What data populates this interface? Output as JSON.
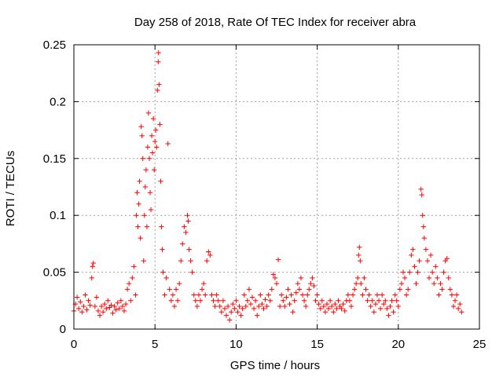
{
  "chart_data": {
    "type": "scatter",
    "title": "Day 258 of 2018, Rate Of TEC Index for receiver abra",
    "xlabel": "GPS time / hours",
    "ylabel": "ROTI / TECUs",
    "xlim": [
      0,
      25
    ],
    "ylim": [
      0,
      0.25
    ],
    "xticks": [
      0,
      5,
      10,
      15,
      20,
      25
    ],
    "yticks": [
      0,
      0.05,
      0.1,
      0.15,
      0.2,
      0.25
    ],
    "xtick_labels": [
      "0",
      "5",
      "10",
      "15",
      "20",
      "25"
    ],
    "ytick_labels": [
      "0",
      "0.05",
      "0.1",
      "0.15",
      "0.2",
      "0.25"
    ],
    "grid": true,
    "marker": "+",
    "color": "#ff0000",
    "series": [
      {
        "name": "ROTI",
        "points": [
          [
            0.0,
            0.016
          ],
          [
            0.1,
            0.022
          ],
          [
            0.2,
            0.028
          ],
          [
            0.3,
            0.018
          ],
          [
            0.4,
            0.024
          ],
          [
            0.5,
            0.015
          ],
          [
            0.6,
            0.02
          ],
          [
            0.7,
            0.03
          ],
          [
            0.8,
            0.017
          ],
          [
            0.9,
            0.025
          ],
          [
            1.0,
            0.021
          ],
          [
            1.1,
            0.045
          ],
          [
            1.15,
            0.055
          ],
          [
            1.2,
            0.058
          ],
          [
            1.3,
            0.02
          ],
          [
            1.4,
            0.028
          ],
          [
            1.5,
            0.016
          ],
          [
            1.6,
            0.012
          ],
          [
            1.7,
            0.02
          ],
          [
            1.8,
            0.015
          ],
          [
            1.9,
            0.022
          ],
          [
            2.0,
            0.018
          ],
          [
            2.1,
            0.025
          ],
          [
            2.2,
            0.019
          ],
          [
            2.3,
            0.021
          ],
          [
            2.4,
            0.014
          ],
          [
            2.5,
            0.02
          ],
          [
            2.6,
            0.017
          ],
          [
            2.7,
            0.023
          ],
          [
            2.8,
            0.018
          ],
          [
            2.9,
            0.025
          ],
          [
            3.0,
            0.02
          ],
          [
            3.1,
            0.016
          ],
          [
            3.2,
            0.022
          ],
          [
            3.3,
            0.035
          ],
          [
            3.4,
            0.04
          ],
          [
            3.5,
            0.025
          ],
          [
            3.6,
            0.045
          ],
          [
            3.7,
            0.055
          ],
          [
            3.8,
            0.03
          ],
          [
            3.85,
            0.1
          ],
          [
            3.9,
            0.12
          ],
          [
            3.95,
            0.09
          ],
          [
            4.0,
            0.11
          ],
          [
            4.05,
            0.13
          ],
          [
            4.1,
            0.08
          ],
          [
            4.15,
            0.178
          ],
          [
            4.2,
            0.17
          ],
          [
            4.25,
            0.15
          ],
          [
            4.3,
            0.06
          ],
          [
            4.35,
            0.1
          ],
          [
            4.4,
            0.125
          ],
          [
            4.45,
            0.14
          ],
          [
            4.5,
            0.09
          ],
          [
            4.55,
            0.16
          ],
          [
            4.6,
            0.19
          ],
          [
            4.65,
            0.15
          ],
          [
            4.7,
            0.12
          ],
          [
            4.75,
            0.105
          ],
          [
            4.8,
            0.17
          ],
          [
            4.85,
            0.155
          ],
          [
            4.9,
            0.185
          ],
          [
            4.95,
            0.14
          ],
          [
            5.0,
            0.165
          ],
          [
            5.05,
            0.175
          ],
          [
            5.1,
            0.16
          ],
          [
            5.15,
            0.21
          ],
          [
            5.2,
            0.235
          ],
          [
            5.22,
            0.243
          ],
          [
            5.25,
            0.215
          ],
          [
            5.3,
            0.18
          ],
          [
            5.35,
            0.13
          ],
          [
            5.4,
            0.09
          ],
          [
            5.45,
            0.07
          ],
          [
            5.5,
            0.05
          ],
          [
            5.6,
            0.03
          ],
          [
            5.7,
            0.045
          ],
          [
            5.8,
            0.163
          ],
          [
            5.9,
            0.035
          ],
          [
            6.0,
            0.025
          ],
          [
            6.1,
            0.03
          ],
          [
            6.2,
            0.02
          ],
          [
            6.3,
            0.035
          ],
          [
            6.4,
            0.025
          ],
          [
            6.5,
            0.04
          ],
          [
            6.6,
            0.06
          ],
          [
            6.7,
            0.075
          ],
          [
            6.8,
            0.09
          ],
          [
            6.9,
            0.085
          ],
          [
            7.0,
            0.1
          ],
          [
            7.05,
            0.095
          ],
          [
            7.1,
            0.07
          ],
          [
            7.2,
            0.06
          ],
          [
            7.3,
            0.05
          ],
          [
            7.4,
            0.03
          ],
          [
            7.5,
            0.025
          ],
          [
            7.6,
            0.02
          ],
          [
            7.7,
            0.03
          ],
          [
            7.8,
            0.025
          ],
          [
            7.9,
            0.035
          ],
          [
            8.0,
            0.04
          ],
          [
            8.1,
            0.03
          ],
          [
            8.2,
            0.06
          ],
          [
            8.3,
            0.068
          ],
          [
            8.4,
            0.065
          ],
          [
            8.5,
            0.03
          ],
          [
            8.6,
            0.025
          ],
          [
            8.7,
            0.02
          ],
          [
            8.8,
            0.03
          ],
          [
            8.9,
            0.025
          ],
          [
            9.0,
            0.02
          ],
          [
            9.1,
            0.015
          ],
          [
            9.2,
            0.025
          ],
          [
            9.3,
            0.018
          ],
          [
            9.4,
            0.012
          ],
          [
            9.5,
            0.02
          ],
          [
            9.6,
            0.008
          ],
          [
            9.7,
            0.015
          ],
          [
            9.8,
            0.022
          ],
          [
            9.9,
            0.018
          ],
          [
            10.0,
            0.025
          ],
          [
            10.1,
            0.015
          ],
          [
            10.2,
            0.02
          ],
          [
            10.3,
            0.012
          ],
          [
            10.4,
            0.018
          ],
          [
            10.5,
            0.03
          ],
          [
            10.6,
            0.02
          ],
          [
            10.7,
            0.025
          ],
          [
            10.8,
            0.035
          ],
          [
            10.9,
            0.022
          ],
          [
            11.0,
            0.028
          ],
          [
            11.1,
            0.018
          ],
          [
            11.2,
            0.025
          ],
          [
            11.3,
            0.012
          ],
          [
            11.4,
            0.02
          ],
          [
            11.5,
            0.03
          ],
          [
            11.6,
            0.022
          ],
          [
            11.7,
            0.018
          ],
          [
            11.8,
            0.026
          ],
          [
            11.9,
            0.02
          ],
          [
            12.0,
            0.03
          ],
          [
            12.1,
            0.025
          ],
          [
            12.2,
            0.035
          ],
          [
            12.3,
            0.048
          ],
          [
            12.4,
            0.045
          ],
          [
            12.5,
            0.04
          ],
          [
            12.6,
            0.061
          ],
          [
            12.7,
            0.02
          ],
          [
            12.8,
            0.03
          ],
          [
            12.9,
            0.025
          ],
          [
            13.0,
            0.02
          ],
          [
            13.1,
            0.028
          ],
          [
            13.2,
            0.035
          ],
          [
            13.3,
            0.022
          ],
          [
            13.4,
            0.03
          ],
          [
            13.5,
            0.015
          ],
          [
            13.6,
            0.025
          ],
          [
            13.7,
            0.032
          ],
          [
            13.8,
            0.04
          ],
          [
            13.9,
            0.035
          ],
          [
            14.0,
            0.045
          ],
          [
            14.1,
            0.03
          ],
          [
            14.2,
            0.025
          ],
          [
            14.3,
            0.02
          ],
          [
            14.4,
            0.03
          ],
          [
            14.5,
            0.035
          ],
          [
            14.6,
            0.04
          ],
          [
            14.7,
            0.045
          ],
          [
            14.8,
            0.038
          ],
          [
            14.9,
            0.025
          ],
          [
            15.0,
            0.03
          ],
          [
            15.1,
            0.022
          ],
          [
            15.2,
            0.018
          ],
          [
            15.3,
            0.025
          ],
          [
            15.4,
            0.02
          ],
          [
            15.5,
            0.015
          ],
          [
            15.6,
            0.022
          ],
          [
            15.7,
            0.018
          ],
          [
            15.8,
            0.025
          ],
          [
            15.9,
            0.02
          ],
          [
            16.0,
            0.015
          ],
          [
            16.1,
            0.022
          ],
          [
            16.2,
            0.018
          ],
          [
            16.3,
            0.025
          ],
          [
            16.4,
            0.02
          ],
          [
            16.5,
            0.018
          ],
          [
            16.6,
            0.022
          ],
          [
            16.7,
            0.016
          ],
          [
            16.8,
            0.025
          ],
          [
            16.9,
            0.03
          ],
          [
            17.0,
            0.025
          ],
          [
            17.1,
            0.02
          ],
          [
            17.2,
            0.03
          ],
          [
            17.3,
            0.035
          ],
          [
            17.4,
            0.04
          ],
          [
            17.5,
            0.045
          ],
          [
            17.55,
            0.065
          ],
          [
            17.6,
            0.072
          ],
          [
            17.65,
            0.06
          ],
          [
            17.7,
            0.04
          ],
          [
            17.8,
            0.03
          ],
          [
            17.9,
            0.045
          ],
          [
            18.0,
            0.035
          ],
          [
            18.1,
            0.025
          ],
          [
            18.2,
            0.03
          ],
          [
            18.3,
            0.02
          ],
          [
            18.4,
            0.025
          ],
          [
            18.5,
            0.015
          ],
          [
            18.6,
            0.022
          ],
          [
            18.7,
            0.03
          ],
          [
            18.8,
            0.025
          ],
          [
            18.9,
            0.018
          ],
          [
            19.0,
            0.03
          ],
          [
            19.1,
            0.022
          ],
          [
            19.2,
            0.025
          ],
          [
            19.3,
            0.018
          ],
          [
            19.4,
            0.012
          ],
          [
            19.5,
            0.02
          ],
          [
            19.6,
            0.025
          ],
          [
            19.7,
            0.015
          ],
          [
            19.8,
            0.03
          ],
          [
            19.9,
            0.025
          ],
          [
            20.0,
            0.02
          ],
          [
            20.1,
            0.035
          ],
          [
            20.2,
            0.04
          ],
          [
            20.3,
            0.05
          ],
          [
            20.4,
            0.045
          ],
          [
            20.5,
            0.03
          ],
          [
            20.6,
            0.035
          ],
          [
            20.7,
            0.05
          ],
          [
            20.8,
            0.065
          ],
          [
            20.9,
            0.07
          ],
          [
            21.0,
            0.055
          ],
          [
            21.1,
            0.04
          ],
          [
            21.2,
            0.05
          ],
          [
            21.3,
            0.06
          ],
          [
            21.4,
            0.123
          ],
          [
            21.45,
            0.118
          ],
          [
            21.5,
            0.1
          ],
          [
            21.55,
            0.09
          ],
          [
            21.6,
            0.08
          ],
          [
            21.7,
            0.07
          ],
          [
            21.8,
            0.06
          ],
          [
            21.9,
            0.045
          ],
          [
            22.0,
            0.065
          ],
          [
            22.1,
            0.05
          ],
          [
            22.2,
            0.04
          ],
          [
            22.3,
            0.055
          ],
          [
            22.4,
            0.045
          ],
          [
            22.5,
            0.03
          ],
          [
            22.6,
            0.04
          ],
          [
            22.7,
            0.035
          ],
          [
            22.8,
            0.05
          ],
          [
            22.9,
            0.06
          ],
          [
            23.0,
            0.062
          ],
          [
            23.1,
            0.045
          ],
          [
            23.2,
            0.035
          ],
          [
            23.3,
            0.03
          ],
          [
            23.4,
            0.02
          ],
          [
            23.5,
            0.025
          ],
          [
            23.6,
            0.03
          ],
          [
            23.7,
            0.018
          ],
          [
            23.8,
            0.022
          ],
          [
            23.9,
            0.015
          ]
        ]
      }
    ]
  }
}
